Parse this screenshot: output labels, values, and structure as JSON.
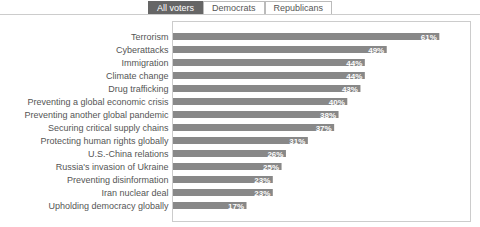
{
  "chart_data": {
    "type": "bar",
    "orientation": "horizontal",
    "annotations": [
      "All voters",
      "Democrats",
      "Republicans"
    ],
    "categories": [
      "Upholding democracy globally",
      "Iran nuclear deal",
      "Preventing disinformation",
      "Russia's invasion of Ukraine",
      "U.S.-China relations",
      "Protecting human rights globally",
      "Securing critical supply chains",
      "Preventing another global pandemic",
      "Preventing a global economic crisis",
      "Drug trafficking",
      "Climate change",
      "Immigration",
      "Cyberattacks",
      "Terrorism"
    ],
    "values": [
      17,
      23,
      23,
      25,
      26,
      31,
      37,
      38,
      40,
      43,
      44,
      44,
      49,
      61
    ],
    "value_labels": [
      "17%",
      "23%",
      "23%",
      "25%",
      "26%",
      "31%",
      "37%",
      "38%",
      "40%",
      "43%",
      "44%",
      "44%",
      "49%",
      "61%"
    ],
    "data_labels": true,
    "color": "#888888",
    "xlim": [
      0,
      68
    ],
    "tick_labels": "y",
    "grid": false
  }
}
